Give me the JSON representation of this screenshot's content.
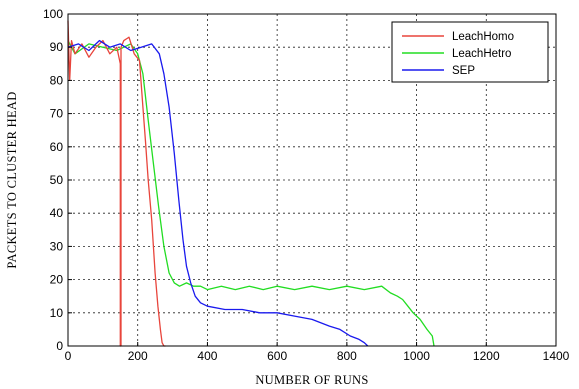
{
  "chart_data": {
    "type": "line",
    "title": "",
    "xlabel": "NUMBER OF RUNS",
    "ylabel": "PACKETS TO CLUSTER HEAD",
    "xlim": [
      0,
      1400
    ],
    "ylim": [
      0,
      100
    ],
    "xticks": [
      "0",
      "200",
      "400",
      "600",
      "800",
      "1000",
      "1200",
      "1400"
    ],
    "yticks": [
      "0",
      "10",
      "20",
      "30",
      "40",
      "50",
      "60",
      "70",
      "80",
      "90",
      "100"
    ],
    "grid": true,
    "legend_position": "top-right",
    "series": [
      {
        "name": "LeachHomo",
        "color": "#e8453c",
        "x": [
          0,
          5,
          10,
          20,
          40,
          60,
          80,
          100,
          120,
          140,
          150,
          150,
          152,
          152,
          160,
          175,
          190,
          205,
          215,
          222,
          230,
          240,
          250,
          258,
          265,
          270,
          275,
          280
        ],
        "y": [
          98,
          80,
          92,
          88,
          91,
          87,
          90,
          92,
          88,
          90,
          85,
          0,
          0,
          90,
          92,
          93,
          88,
          86,
          72,
          62,
          50,
          38,
          22,
          12,
          5,
          1,
          0,
          0
        ]
      },
      {
        "name": "LeachHetro",
        "color": "#22dd22",
        "x": [
          0,
          20,
          60,
          100,
          140,
          180,
          200,
          215,
          230,
          245,
          260,
          275,
          290,
          305,
          320,
          340,
          360,
          380,
          400,
          440,
          480,
          520,
          560,
          600,
          650,
          700,
          750,
          800,
          850,
          900,
          925,
          945,
          960,
          975,
          990,
          1010,
          1030,
          1045,
          1050
        ],
        "y": [
          92,
          88,
          91,
          90,
          89,
          91,
          88,
          82,
          68,
          55,
          42,
          30,
          22,
          19,
          18,
          19,
          18,
          18,
          17,
          18,
          17,
          18,
          17,
          18,
          17,
          18,
          17,
          18,
          17,
          18,
          16,
          15,
          14,
          12,
          10,
          8,
          5,
          3,
          0
        ]
      },
      {
        "name": "SEP",
        "color": "#1a1aee",
        "x": [
          0,
          30,
          60,
          90,
          120,
          150,
          180,
          210,
          240,
          262,
          275,
          290,
          305,
          318,
          330,
          340,
          352,
          365,
          380,
          400,
          450,
          500,
          550,
          600,
          650,
          700,
          750,
          780,
          810,
          835,
          850,
          860
        ],
        "y": [
          90,
          91,
          89,
          92,
          90,
          91,
          89,
          90,
          91,
          88,
          82,
          72,
          58,
          44,
          32,
          24,
          19,
          15,
          13,
          12,
          11,
          11,
          10,
          10,
          9,
          8,
          6,
          5,
          3,
          2,
          1,
          0
        ]
      }
    ]
  }
}
